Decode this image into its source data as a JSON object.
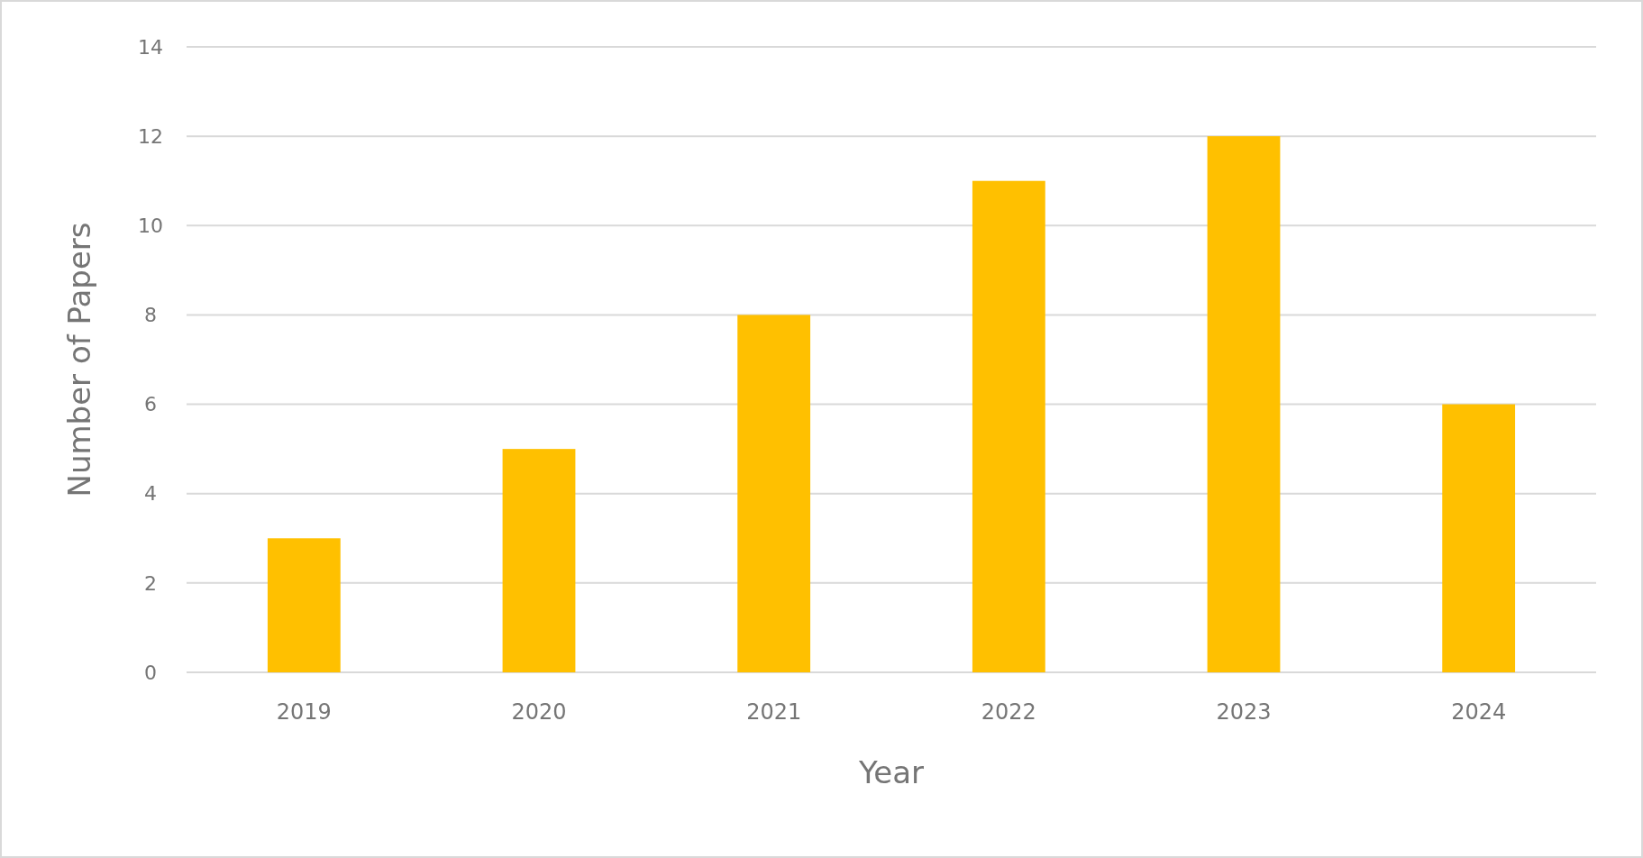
{
  "chart_data": {
    "type": "bar",
    "xlabel": "Year",
    "ylabel": "Number of Papers",
    "categories": [
      "2019",
      "2020",
      "2021",
      "2022",
      "2023",
      "2024"
    ],
    "values": [
      3,
      5,
      8,
      11,
      12,
      6
    ],
    "color": "#ffc000",
    "ylim": [
      0,
      14
    ],
    "yticks": [
      0,
      2,
      4,
      6,
      8,
      10,
      12,
      14
    ],
    "grid": "y"
  }
}
